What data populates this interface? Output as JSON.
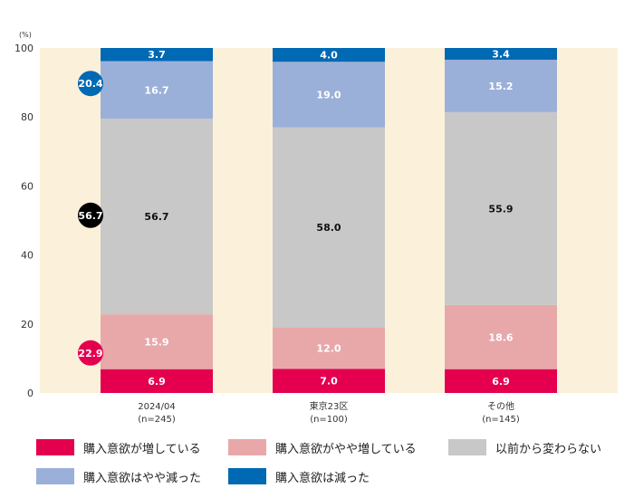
{
  "chart_data": {
    "type": "bar",
    "stacked": true,
    "unit_label": "(%)",
    "ylim": [
      0,
      100
    ],
    "yticks": [
      0,
      20,
      40,
      60,
      80,
      100
    ],
    "categories": [
      {
        "label": "2024/04",
        "n": "(n=245)"
      },
      {
        "label": "東京23区",
        "n": "(n=100)"
      },
      {
        "label": "その他",
        "n": "(n=145)"
      }
    ],
    "series": [
      {
        "name": "購入意欲が増している",
        "color": "#e4004f",
        "label_color": "#ffffff",
        "values": [
          6.9,
          7.0,
          6.9
        ]
      },
      {
        "name": "購入意欲がやや増している",
        "color": "#e8a8aa",
        "label_color": "#ffffff",
        "values": [
          15.9,
          12.0,
          18.6
        ]
      },
      {
        "name": "以前から変わらない",
        "color": "#c8c8c8",
        "label_color": "#111111",
        "values": [
          56.7,
          58.0,
          55.9
        ]
      },
      {
        "name": "購入意欲はやや減った",
        "color": "#9bb0d8",
        "label_color": "#ffffff",
        "values": [
          16.7,
          19.0,
          15.2
        ]
      },
      {
        "name": "購入意欲は減った",
        "color": "#0069b4",
        "label_color": "#ffffff",
        "values": [
          3.7,
          4.0,
          3.4
        ]
      }
    ],
    "callouts": [
      {
        "value": "20.4",
        "color": "#0069b4",
        "center_value": 89.7
      },
      {
        "value": "56.7",
        "color": "#000000",
        "center_value": 51.5
      },
      {
        "value": "22.9",
        "color": "#e4004f",
        "center_value": 11.6
      }
    ],
    "background_color": "#fbf1da"
  }
}
